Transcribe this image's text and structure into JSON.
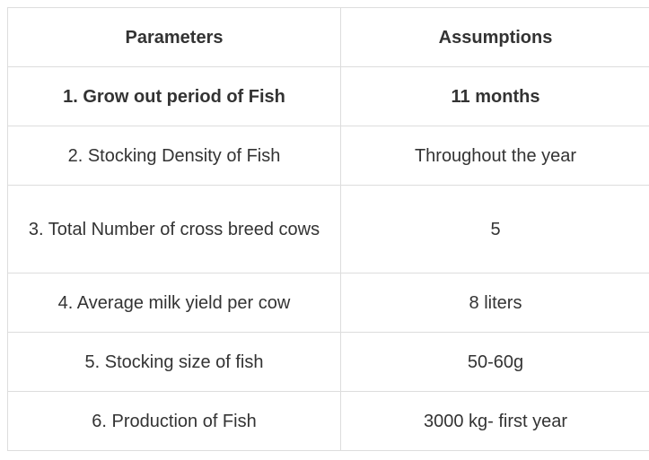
{
  "table": {
    "headers": [
      "Parameters",
      "Assumptions"
    ],
    "rows": [
      {
        "parameter": "1. Grow out period of Fish",
        "assumption": "11 months"
      },
      {
        "parameter": "2. Stocking Density of Fish",
        "assumption": "Throughout the year"
      },
      {
        "parameter": "3. Total Number of cross breed cows",
        "assumption": "5"
      },
      {
        "parameter": "4. Average milk yield per cow",
        "assumption": "8 liters"
      },
      {
        "parameter": "5. Stocking size of fish",
        "assumption": "50-60g"
      },
      {
        "parameter": "6. Production of Fish",
        "assumption": "3000 kg- first year"
      }
    ]
  }
}
